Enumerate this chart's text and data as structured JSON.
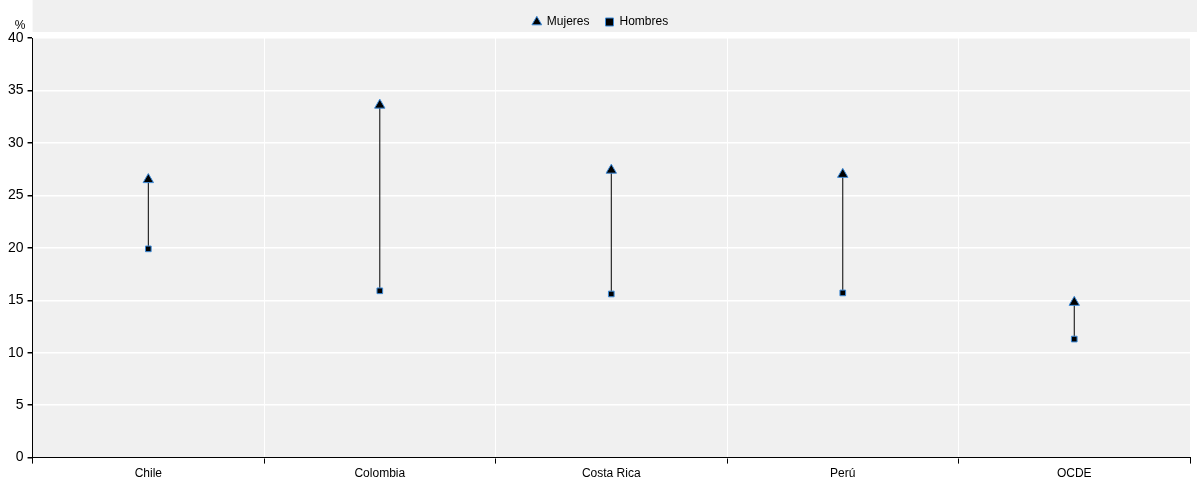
{
  "chart_data": {
    "type": "scatter",
    "ylabel": "%",
    "categories": [
      "Chile",
      "Colombia",
      "Costa Rica",
      "Perú",
      "OCDE"
    ],
    "series": [
      {
        "name": "Mujeres",
        "color": "#000000",
        "marker": "triangle",
        "values": [
          26.5,
          33.6,
          27.4,
          27.0,
          14.8
        ]
      },
      {
        "name": "Hombres",
        "color": "#000000",
        "marker": "square",
        "values": [
          19.9,
          15.9,
          15.6,
          15.7,
          11.3
        ]
      }
    ],
    "ylim": [
      0,
      40
    ],
    "yticks": [
      0,
      5,
      10,
      15,
      20,
      25,
      30,
      35,
      40
    ],
    "grid": true,
    "legend": "top"
  }
}
